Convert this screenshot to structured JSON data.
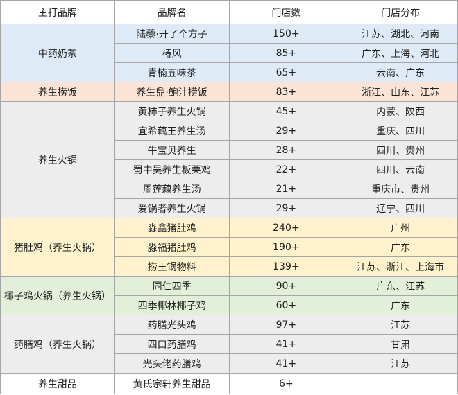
{
  "header": [
    "主打品牌",
    "品牌名",
    "门店数",
    "门店分布"
  ],
  "groups": [
    {
      "category": "中药奶茶",
      "color": "#deeaf6",
      "brands": [
        {
          "name": "陆藜·开了个方子",
          "stores": "150+",
          "regions": "江苏、湖北、河南"
        },
        {
          "name": "椿风",
          "stores": "85+",
          "regions": "广东、上海、河北"
        },
        {
          "name": "青楠五味茶",
          "stores": "65+",
          "regions": "云南、广东"
        }
      ]
    },
    {
      "category": "养生捞饭",
      "color": "#fbe4d5",
      "brands": [
        {
          "name": "养生鼎·鲍汁捞饭",
          "stores": "83+",
          "regions": "浙江、山东、江苏"
        }
      ]
    },
    {
      "category": "养生火锅",
      "color": "#ededed",
      "brands": [
        {
          "name": "黄柿子养生火锅",
          "stores": "45+",
          "regions": "内蒙、陕西"
        },
        {
          "name": "宜希藕王养生汤",
          "stores": "29+",
          "regions": "重庆、四川"
        },
        {
          "name": "牛宝贝养生",
          "stores": "28+",
          "regions": "四川、贵州"
        },
        {
          "name": "蜀中吴养生板栗鸡",
          "stores": "22+",
          "regions": "四川、云南"
        },
        {
          "name": "周莲藕养生汤",
          "stores": "21+",
          "regions": "重庆市、贵州"
        },
        {
          "name": "爱锅者养生火锅",
          "stores": "29+",
          "regions": "辽宁、四川"
        }
      ]
    },
    {
      "category": "猪肚鸡（养生火锅）",
      "color": "#fff2cc",
      "brands": [
        {
          "name": "淼鑫猪肚鸡",
          "stores": "240+",
          "regions": "广州"
        },
        {
          "name": "淼福猪肚鸡",
          "stores": "190+",
          "regions": "广东"
        },
        {
          "name": "捞王锅物料",
          "stores": "139+",
          "regions": "江苏、浙江、上海市"
        }
      ]
    },
    {
      "category": "椰子鸡火锅（养生火锅）",
      "color": "#e2efd9",
      "brands": [
        {
          "name": "同仁四季",
          "stores": "90+",
          "regions": "广东、江苏"
        },
        {
          "name": "四季椰林椰子鸡",
          "stores": "60+",
          "regions": "广东"
        }
      ]
    },
    {
      "category": "药膳鸡（养生火锅）",
      "color": "#ededed",
      "brands": [
        {
          "name": "药膳光头鸡",
          "stores": "97+",
          "regions": "江苏"
        },
        {
          "name": "四口药膳鸡",
          "stores": "41+",
          "regions": "甘肃"
        },
        {
          "name": "光头佬药膳鸡",
          "stores": "41+",
          "regions": "江苏"
        }
      ]
    },
    {
      "category": "养生甜品",
      "color": "#ffffff",
      "brands": [
        {
          "name": "黄氏宗轩养生甜品",
          "stores": "6+",
          "regions": ""
        }
      ]
    }
  ]
}
